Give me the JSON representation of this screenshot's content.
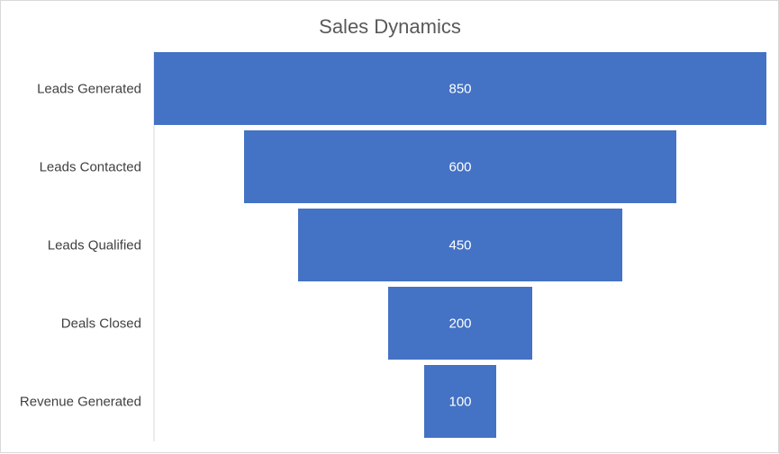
{
  "chart_data": {
    "type": "bar",
    "subtype": "funnel",
    "title": "Sales Dynamics",
    "categories": [
      "Leads Generated",
      "Leads Contacted",
      "Leads Qualified",
      "Deals Closed",
      "Revenue Generated"
    ],
    "values": [
      850,
      600,
      450,
      200,
      100
    ],
    "data_labels": [
      "850",
      "600",
      "450",
      "200",
      "100"
    ],
    "bar_color": "#4472c4",
    "legend": "none",
    "grid": false
  }
}
